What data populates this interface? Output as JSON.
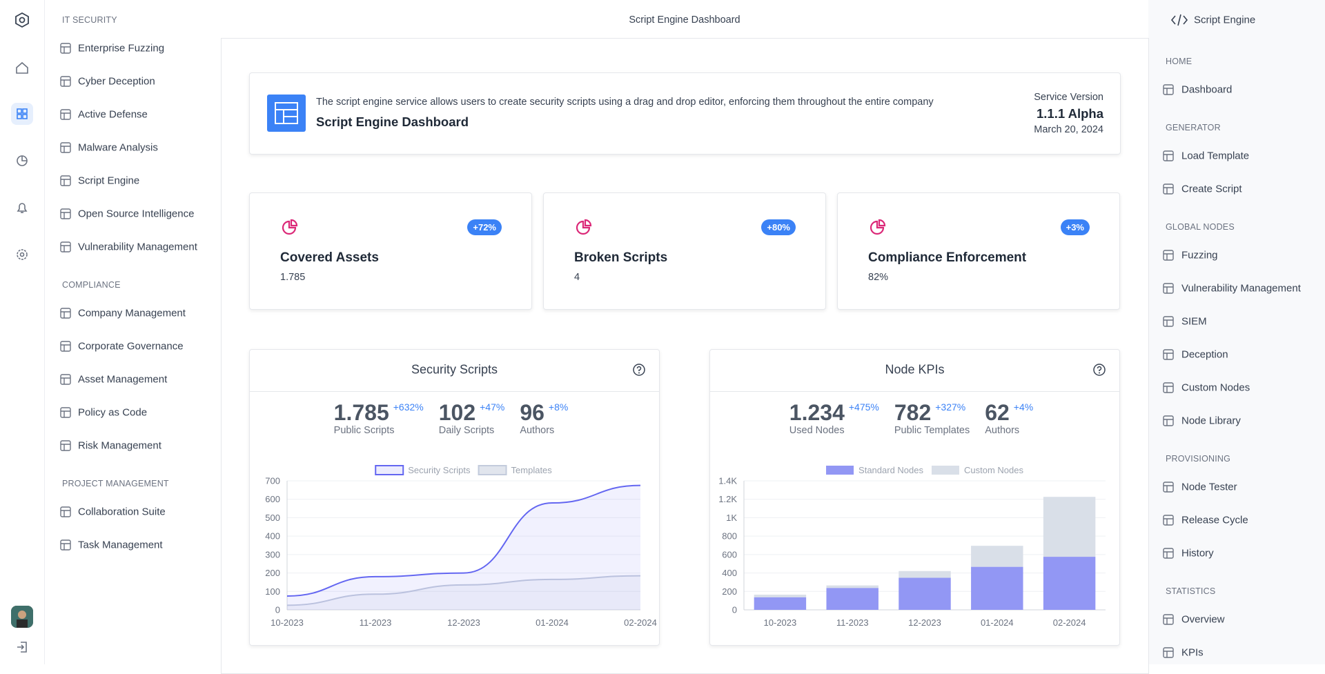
{
  "header": {
    "title": "Script Engine Dashboard",
    "context": "Script Engine"
  },
  "left_nav": [
    {
      "heading": "IT SECURITY",
      "items": [
        "Enterprise Fuzzing",
        "Cyber Deception",
        "Active Defense",
        "Malware Analysis",
        "Script Engine",
        "Open Source Intelligence",
        "Vulnerability Management"
      ]
    },
    {
      "heading": "COMPLIANCE",
      "items": [
        "Company Management",
        "Corporate Governance",
        "Asset Management",
        "Policy as Code",
        "Risk Management"
      ]
    },
    {
      "heading": "PROJECT MANAGEMENT",
      "items": [
        "Collaboration Suite",
        "Task Management"
      ]
    }
  ],
  "right_nav": [
    {
      "heading": "HOME",
      "items": [
        "Dashboard"
      ]
    },
    {
      "heading": "GENERATOR",
      "items": [
        "Load Template",
        "Create Script"
      ]
    },
    {
      "heading": "GLOBAL NODES",
      "items": [
        "Fuzzing",
        "Vulnerability Management",
        "SIEM",
        "Deception",
        "Custom Nodes",
        "Node Library"
      ]
    },
    {
      "heading": "PROVISIONING",
      "items": [
        "Node Tester",
        "Release Cycle",
        "History"
      ]
    },
    {
      "heading": "STATISTICS",
      "items": [
        "Overview",
        "KPIs"
      ]
    }
  ],
  "banner": {
    "description": "The script engine service allows users to create security scripts using a drag and drop editor, enforcing them throughout the entire company",
    "title": "Script Engine Dashboard",
    "version_label": "Service Version",
    "version": "1.1.1 Alpha",
    "date": "March 20, 2024"
  },
  "kpis": [
    {
      "title": "Covered Assets",
      "value": "1.785",
      "badge": "+72%"
    },
    {
      "title": "Broken Scripts",
      "value": "4",
      "badge": "+80%"
    },
    {
      "title": "Compliance Enforcement",
      "value": "82%",
      "badge": "+3%"
    }
  ],
  "charts": [
    {
      "type": "area",
      "title": "Security Scripts",
      "stats": [
        {
          "value": "1.785",
          "change": "+632%",
          "label": "Public Scripts"
        },
        {
          "value": "102",
          "change": "+47%",
          "label": "Daily Scripts"
        },
        {
          "value": "96",
          "change": "+8%",
          "label": "Authors"
        }
      ],
      "categories": [
        "10-2023",
        "11-2023",
        "12-2023",
        "01-2024",
        "02-2024"
      ],
      "series": [
        {
          "name": "Security Scripts",
          "color": "#6366f1",
          "values": [
            75,
            180,
            200,
            580,
            675
          ]
        },
        {
          "name": "Templates",
          "color": "#c3cbdc",
          "values": [
            25,
            85,
            135,
            165,
            185
          ]
        }
      ],
      "ylim": [
        0,
        700
      ],
      "yticks": [
        0,
        100,
        200,
        300,
        400,
        500,
        600,
        700
      ],
      "grid": true
    },
    {
      "type": "stacked_bar",
      "title": "Node KPIs",
      "stats": [
        {
          "value": "1.234",
          "change": "+475%",
          "label": "Used Nodes"
        },
        {
          "value": "782",
          "change": "+327%",
          "label": "Public Templates"
        },
        {
          "value": "62",
          "change": "+4%",
          "label": "Authors"
        }
      ],
      "categories": [
        "10-2023",
        "11-2023",
        "12-2023",
        "01-2024",
        "02-2024"
      ],
      "series": [
        {
          "name": "Standard Nodes",
          "color": "#9297f4",
          "values": [
            137,
            238,
            348,
            467,
            576
          ]
        },
        {
          "name": "Custom Nodes",
          "color": "#d9dfe8",
          "values": [
            28,
            27,
            73,
            228,
            650
          ]
        }
      ],
      "ylim": [
        0,
        1400
      ],
      "yticks": [
        0,
        200,
        400,
        600,
        800,
        {
          "value": 1000,
          "label": "1K"
        },
        {
          "value": 1200,
          "label": "1.2K"
        },
        {
          "value": 1400,
          "label": "1.4K"
        }
      ],
      "grid": true
    }
  ]
}
